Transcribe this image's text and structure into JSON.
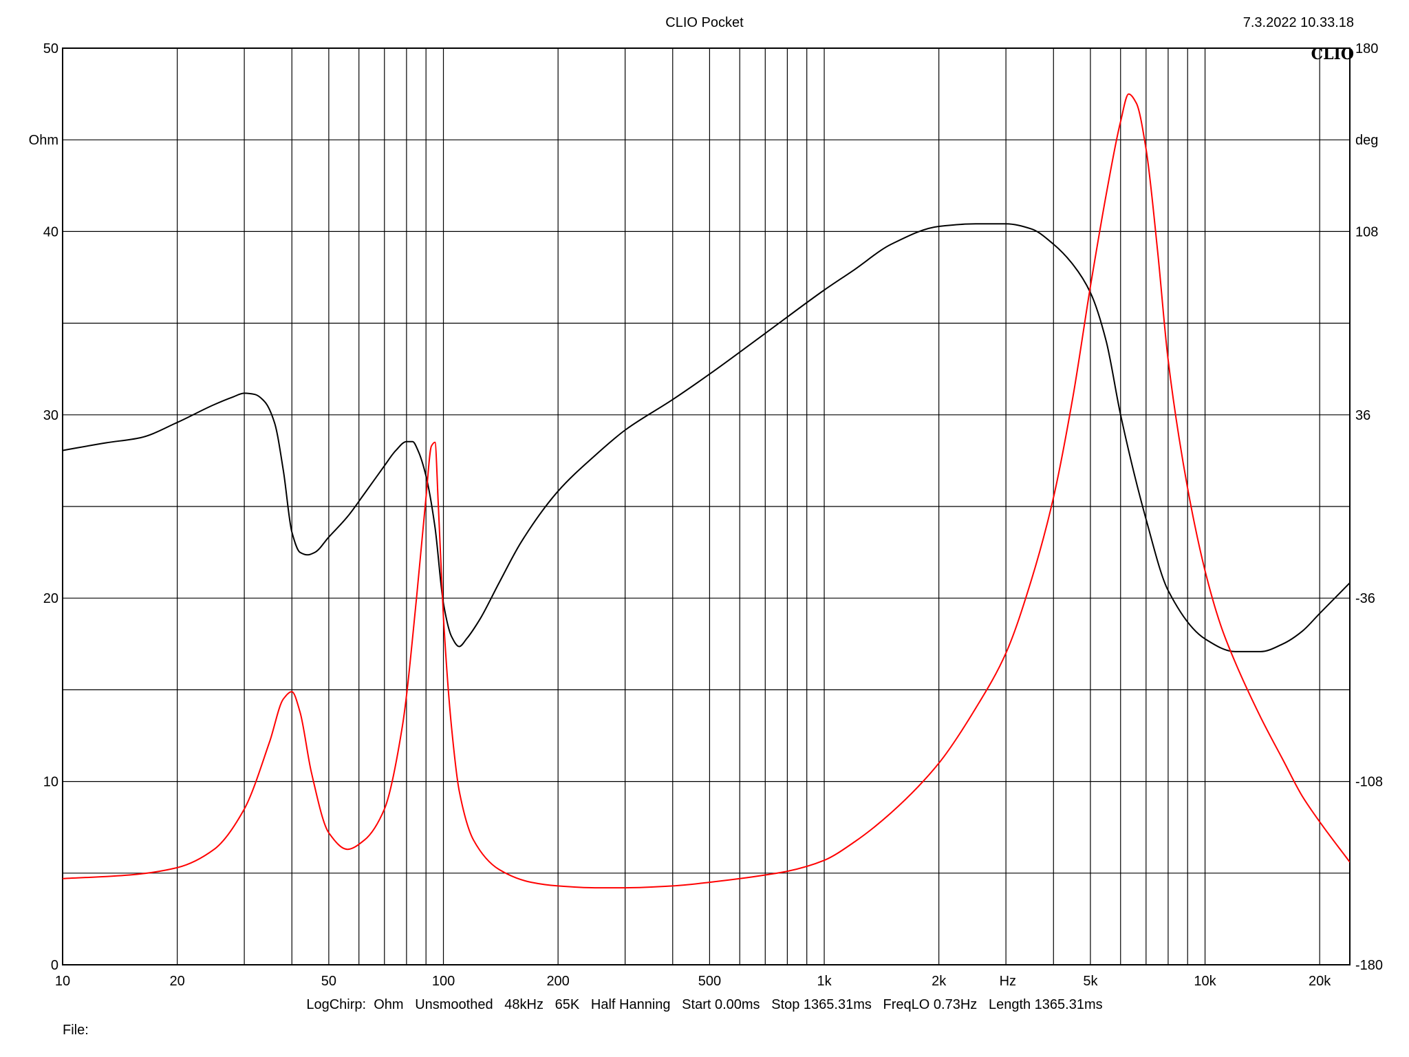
{
  "header": {
    "title": "CLIO Pocket",
    "datetime": "7.3.2022 10.33.18",
    "watermark": "CLIO"
  },
  "footer": {
    "settings": "LogChirp:  Ohm   Unsmoothed   48kHz   65K   Half Hanning   Start 0.00ms   Stop 1365.31ms   FreqLO 0.73Hz   Length 1365.31ms",
    "file_label": "File:"
  },
  "chart_data": {
    "type": "line",
    "title": "CLIO Pocket",
    "xscale": "log",
    "xlim": [
      10,
      24000
    ],
    "x_unit": "Hz",
    "x_ticks": [
      {
        "value": 10,
        "label": "10"
      },
      {
        "value": 20,
        "label": "20"
      },
      {
        "value": 50,
        "label": "50"
      },
      {
        "value": 100,
        "label": "100"
      },
      {
        "value": 200,
        "label": "200"
      },
      {
        "value": 500,
        "label": "500"
      },
      {
        "value": 1000,
        "label": "1k"
      },
      {
        "value": 2000,
        "label": "2k"
      },
      {
        "value": 5000,
        "label": "5k"
      },
      {
        "value": 10000,
        "label": "10k"
      },
      {
        "value": 20000,
        "label": "20k"
      }
    ],
    "y_left": {
      "unit": "Ohm",
      "lim": [
        0,
        50
      ],
      "ticks": [
        0,
        10,
        20,
        30,
        40,
        50
      ]
    },
    "y_right": {
      "unit": "deg",
      "lim": [
        -180,
        180
      ],
      "ticks": [
        -180,
        -108,
        -36,
        36,
        108,
        180
      ]
    },
    "grid": true,
    "series": [
      {
        "axis": "left",
        "color": "#ff0000",
        "x": [
          10,
          15,
          20,
          25,
          30,
          35,
          38,
          40,
          42,
          45,
          50,
          56,
          62,
          70,
          78,
          85,
          90,
          93,
          95,
          97,
          100,
          105,
          110,
          120,
          140,
          170,
          200,
          250,
          300,
          400,
          500,
          600,
          700,
          800,
          1000,
          1200,
          1500,
          2000,
          2500,
          3000,
          3500,
          4000,
          4500,
          5000,
          5500,
          6000,
          6300,
          6600,
          7000,
          7500,
          8000,
          9000,
          10000,
          11000,
          12000,
          14000,
          16000,
          18000,
          20000,
          24000
        ],
        "y": [
          4.7,
          4.9,
          5.3,
          6.3,
          8.5,
          12.2,
          14.5,
          14.9,
          13.8,
          10.5,
          7.2,
          6.3,
          6.8,
          8.5,
          13.0,
          20.0,
          25.5,
          28.3,
          28.5,
          25.0,
          19.0,
          13.0,
          9.5,
          6.8,
          5.2,
          4.5,
          4.3,
          4.2,
          4.2,
          4.3,
          4.5,
          4.7,
          4.9,
          5.1,
          5.7,
          6.7,
          8.3,
          11.0,
          14.0,
          17.0,
          21.0,
          25.5,
          31.0,
          37.0,
          42.0,
          46.0,
          47.5,
          47.0,
          44.5,
          39.0,
          33.0,
          26.0,
          21.5,
          18.5,
          16.5,
          13.5,
          11.2,
          9.2,
          7.8,
          5.6
        ]
      },
      {
        "axis": "right",
        "color": "#000000",
        "x": [
          10,
          13,
          16,
          20,
          25,
          28,
          30,
          32,
          34,
          36,
          38,
          40,
          42,
          44,
          46,
          50,
          56,
          62,
          70,
          75,
          80,
          83,
          86,
          90,
          95,
          100,
          105,
          110,
          115,
          125,
          140,
          160,
          200,
          250,
          300,
          400,
          500,
          700,
          1000,
          1200,
          1500,
          2000,
          2500,
          3000,
          3500,
          4000,
          4500,
          5000,
          5500,
          6000,
          7000,
          8000,
          10000,
          12000,
          14000,
          16000,
          18000,
          20000,
          24000
        ],
        "y": [
          22,
          25,
          27,
          33,
          40,
          43,
          44.5,
          44,
          41,
          33,
          14,
          -10,
          -18,
          -19,
          -18,
          -12,
          -4,
          5,
          16,
          22,
          25.5,
          25.5,
          21.5,
          12,
          -8,
          -38,
          -51,
          -55,
          -52,
          -44,
          -30,
          -14,
          6,
          20,
          30,
          42,
          52,
          68,
          85,
          93,
          103,
          110,
          111,
          111,
          109,
          103,
          95,
          84,
          65,
          36,
          -5,
          -33,
          -52,
          -57,
          -57,
          -54,
          -49,
          -42,
          -30
        ]
      }
    ]
  }
}
